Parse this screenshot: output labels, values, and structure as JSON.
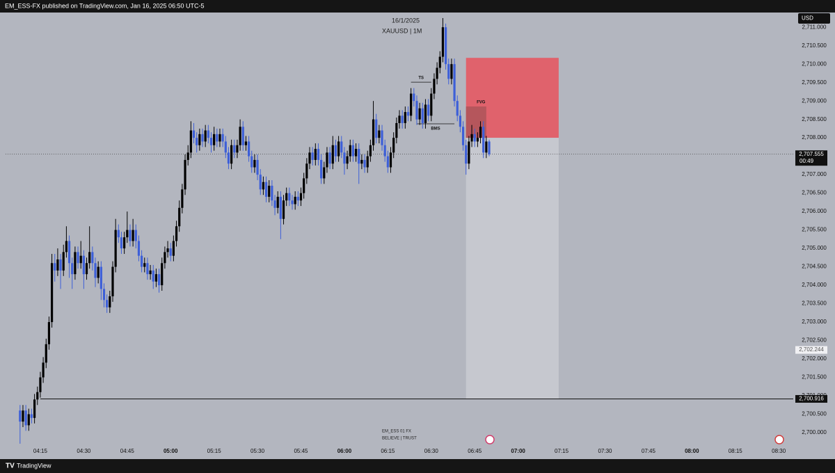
{
  "header": "EM_ESS-FX published on TradingView.com, Jan 16, 2025 06:50 UTC-5",
  "footer": "TradingView",
  "chart_data": {
    "type": "candlestick",
    "title": "16/1/2025",
    "subtitle": "XAUUSD | 1M",
    "currency": "USD",
    "countdown": "00:49",
    "watermark": [
      "EM_ESS 01 FX",
      "BELIEVE | TRUST"
    ],
    "up_color": "#000000",
    "down_color": "#3d5fd8",
    "background": "#b3b6bf",
    "x": [
      "04:08",
      "04:09",
      "04:10",
      "04:11",
      "04:12",
      "04:13",
      "04:14",
      "04:15",
      "04:16",
      "04:17",
      "04:18",
      "04:19",
      "04:20",
      "04:21",
      "04:22",
      "04:23",
      "04:24",
      "04:25",
      "04:26",
      "04:27",
      "04:28",
      "04:29",
      "04:30",
      "04:31",
      "04:32",
      "04:33",
      "04:34",
      "04:35",
      "04:36",
      "04:37",
      "04:38",
      "04:39",
      "04:40",
      "04:41",
      "04:42",
      "04:43",
      "04:44",
      "04:45",
      "04:46",
      "04:47",
      "04:48",
      "04:49",
      "04:50",
      "04:51",
      "04:52",
      "04:53",
      "04:54",
      "04:55",
      "04:56",
      "04:57",
      "04:58",
      "04:59",
      "05:00",
      "05:01",
      "05:02",
      "05:03",
      "05:04",
      "05:05",
      "05:06",
      "05:07",
      "05:08",
      "05:09",
      "05:10",
      "05:11",
      "05:12",
      "05:13",
      "05:14",
      "05:15",
      "05:16",
      "05:17",
      "05:18",
      "05:19",
      "05:20",
      "05:21",
      "05:22",
      "05:23",
      "05:24",
      "05:25",
      "05:26",
      "05:27",
      "05:28",
      "05:29",
      "05:30",
      "05:31",
      "05:32",
      "05:33",
      "05:34",
      "05:35",
      "05:36",
      "05:37",
      "05:38",
      "05:39",
      "05:40",
      "05:41",
      "05:42",
      "05:43",
      "05:44",
      "05:45",
      "05:46",
      "05:47",
      "05:48",
      "05:49",
      "05:50",
      "05:51",
      "05:52",
      "05:53",
      "05:54",
      "05:55",
      "05:56",
      "05:57",
      "05:58",
      "05:59",
      "06:00",
      "06:01",
      "06:02",
      "06:03",
      "06:04",
      "06:05",
      "06:06",
      "06:07",
      "06:08",
      "06:09",
      "06:10",
      "06:11",
      "06:12",
      "06:13",
      "06:14",
      "06:15",
      "06:16",
      "06:17",
      "06:18",
      "06:19",
      "06:20",
      "06:21",
      "06:22",
      "06:23",
      "06:24",
      "06:25",
      "06:26",
      "06:27",
      "06:28",
      "06:29",
      "06:30",
      "06:31",
      "06:32",
      "06:33",
      "06:34",
      "06:35",
      "06:36",
      "06:37",
      "06:38",
      "06:39",
      "06:40",
      "06:41",
      "06:42",
      "06:43",
      "06:44",
      "06:45",
      "06:46",
      "06:47",
      "06:48",
      "06:49",
      "06:50"
    ],
    "open": [
      2700.6,
      2700.3,
      2700.6,
      2700.2,
      2700.5,
      2700.4,
      2700.9,
      2701.1,
      2701.5,
      2701.9,
      2702.4,
      2703.0,
      2704.6,
      2704.4,
      2704.7,
      2704.4,
      2704.9,
      2705.2,
      2704.6,
      2704.3,
      2704.9,
      2704.6,
      2704.8,
      2704.3,
      2704.6,
      2704.9,
      2704.6,
      2704.2,
      2704.5,
      2703.9,
      2703.6,
      2703.4,
      2703.7,
      2704.5,
      2705.5,
      2705.3,
      2705.0,
      2705.3,
      2705.5,
      2705.2,
      2705.5,
      2705.2,
      2704.8,
      2704.5,
      2704.6,
      2704.3,
      2704.4,
      2704.1,
      2704.3,
      2704.0,
      2704.6,
      2704.9,
      2705.0,
      2704.8,
      2705.2,
      2705.6,
      2706.1,
      2706.6,
      2707.4,
      2707.6,
      2708.2,
      2708.0,
      2707.8,
      2708.1,
      2707.9,
      2708.2,
      2708.0,
      2707.8,
      2708.1,
      2707.9,
      2708.1,
      2707.9,
      2707.6,
      2707.3,
      2707.8,
      2707.6,
      2707.8,
      2708.3,
      2707.8,
      2707.9,
      2707.5,
      2707.2,
      2707.4,
      2707.0,
      2706.6,
      2706.8,
      2706.4,
      2706.7,
      2706.3,
      2706.1,
      2706.4,
      2705.8,
      2706.3,
      2706.5,
      2706.3,
      2706.2,
      2706.4,
      2706.3,
      2706.5,
      2706.9,
      2707.3,
      2707.6,
      2707.4,
      2707.7,
      2707.4,
      2706.9,
      2707.2,
      2707.6,
      2707.3,
      2707.8,
      2707.5,
      2707.9,
      2707.6,
      2707.3,
      2707.5,
      2707.8,
      2707.5,
      2707.7,
      2707.3,
      2707.4,
      2707.2,
      2707.5,
      2707.8,
      2708.5,
      2708.0,
      2708.2,
      2707.8,
      2707.5,
      2707.2,
      2707.6,
      2708.0,
      2708.4,
      2708.6,
      2708.4,
      2708.7,
      2708.6,
      2709.2,
      2709.0,
      2708.5,
      2708.8,
      2708.4,
      2708.9,
      2708.6,
      2709.2,
      2709.6,
      2709.9,
      2710.2,
      2711.0,
      2710.0,
      2709.6,
      2710.0,
      2709.0,
      2708.6,
      2708.3,
      2707.8,
      2707.3,
      2707.9,
      2708.1,
      2707.9,
      2708.0,
      2708.3,
      2707.6,
      2707.9
    ],
    "high": [
      2700.75,
      2700.75,
      2700.75,
      2700.65,
      2700.65,
      2701.05,
      2701.25,
      2701.65,
      2702.05,
      2702.55,
      2703.15,
      2704.85,
      2704.85,
      2705.0,
      2704.85,
      2705.1,
      2705.6,
      2705.35,
      2704.75,
      2705.05,
      2705.05,
      2705.2,
      2704.95,
      2704.75,
      2705.6,
      2705.05,
      2704.75,
      2704.65,
      2704.65,
      2704.05,
      2703.75,
      2703.85,
      2704.65,
      2705.8,
      2705.65,
      2705.45,
      2705.45,
      2706.0,
      2705.65,
      2705.8,
      2705.65,
      2705.35,
      2704.95,
      2704.75,
      2704.75,
      2704.55,
      2704.55,
      2704.45,
      2704.45,
      2704.75,
      2705.05,
      2705.2,
      2705.15,
      2705.35,
      2705.75,
      2706.3,
      2706.75,
      2707.55,
      2707.8,
      2708.45,
      2708.4,
      2708.15,
      2708.25,
      2708.25,
      2708.35,
      2708.35,
      2708.15,
      2708.3,
      2708.25,
      2708.25,
      2708.25,
      2708.05,
      2707.75,
      2707.95,
      2707.95,
      2707.95,
      2708.5,
      2708.45,
      2708.05,
      2708.05,
      2707.65,
      2707.55,
      2707.55,
      2707.15,
      2706.95,
      2706.95,
      2706.85,
      2706.85,
      2706.45,
      2706.55,
      2706.55,
      2706.45,
      2706.65,
      2706.65,
      2706.45,
      2706.55,
      2706.55,
      2706.65,
      2707.05,
      2707.45,
      2707.75,
      2707.75,
      2707.85,
      2707.85,
      2707.55,
      2707.35,
      2707.75,
      2707.75,
      2708.05,
      2707.95,
      2708.05,
      2708.05,
      2707.75,
      2707.65,
      2707.95,
      2707.95,
      2707.85,
      2707.85,
      2707.55,
      2707.55,
      2707.65,
      2707.95,
      2709.0,
      2708.65,
      2708.35,
      2708.35,
      2707.95,
      2707.65,
      2707.75,
      2708.15,
      2708.55,
      2708.75,
      2708.75,
      2708.85,
      2708.85,
      2709.35,
      2709.35,
      2709.15,
      2708.95,
      2708.95,
      2709.05,
      2709.05,
      2709.35,
      2709.75,
      2710.05,
      2710.35,
      2711.25,
      2711.1,
      2710.15,
      2710.15,
      2710.15,
      2709.15,
      2708.75,
      2708.45,
      2707.95,
      2708.05,
      2708.35,
      2708.25,
      2708.15,
      2708.45,
      2708.45,
      2708.05,
      2707.95
    ],
    "low": [
      2699.7,
      2700.15,
      2700.05,
      2700.05,
      2700.25,
      2700.25,
      2700.75,
      2700.95,
      2701.35,
      2701.75,
      2702.25,
      2702.85,
      2704.1,
      2704.25,
      2703.9,
      2704.25,
      2704.75,
      2704.2,
      2703.9,
      2704.15,
      2704.45,
      2704.45,
      2703.9,
      2704.15,
      2704.45,
      2704.4,
      2703.95,
      2704.05,
      2703.6,
      2703.4,
      2703.25,
      2703.25,
      2703.55,
      2704.35,
      2705.15,
      2704.85,
      2704.85,
      2705.15,
      2705.05,
      2705.05,
      2705.0,
      2704.65,
      2704.35,
      2704.35,
      2704.15,
      2704.15,
      2703.9,
      2703.95,
      2703.8,
      2703.85,
      2704.45,
      2704.75,
      2704.65,
      2704.65,
      2705.05,
      2705.45,
      2705.95,
      2706.45,
      2707.25,
      2707.45,
      2707.85,
      2707.6,
      2707.65,
      2707.75,
      2707.75,
      2707.85,
      2707.6,
      2707.65,
      2707.75,
      2707.75,
      2707.75,
      2707.45,
      2707.15,
      2707.15,
      2707.45,
      2707.45,
      2707.65,
      2707.65,
      2707.65,
      2707.35,
      2707.05,
      2707.05,
      2706.85,
      2706.45,
      2706.45,
      2706.25,
      2706.25,
      2706.15,
      2705.9,
      2705.95,
      2705.25,
      2705.65,
      2706.15,
      2706.15,
      2706.05,
      2706.05,
      2706.15,
      2706.15,
      2706.35,
      2706.75,
      2707.15,
      2707.25,
      2707.25,
      2707.25,
      2706.75,
      2706.75,
      2707.05,
      2707.15,
      2707.15,
      2707.35,
      2707.35,
      2707.45,
      2707.0,
      2707.15,
      2707.35,
      2707.35,
      2707.35,
      2706.75,
      2707.15,
      2707.05,
      2707.05,
      2707.35,
      2707.65,
      2707.85,
      2707.85,
      2707.65,
      2707.35,
      2707.05,
      2707.05,
      2707.45,
      2707.85,
      2708.25,
      2708.25,
      2708.25,
      2708.45,
      2708.45,
      2708.85,
      2708.35,
      2708.35,
      2708.25,
      2708.25,
      2708.45,
      2708.45,
      2709.05,
      2709.45,
      2709.75,
      2710.05,
      2709.85,
      2709.45,
      2709.45,
      2708.85,
      2708.45,
      2708.15,
      2707.65,
      2707.0,
      2707.15,
      2707.75,
      2707.75,
      2707.75,
      2707.85,
      2707.45,
      2707.45,
      2707.5
    ],
    "close": [
      2700.3,
      2700.6,
      2700.2,
      2700.5,
      2700.4,
      2700.9,
      2701.1,
      2701.5,
      2701.9,
      2702.4,
      2703.0,
      2704.6,
      2704.4,
      2704.7,
      2704.4,
      2704.9,
      2705.2,
      2704.6,
      2704.3,
      2704.9,
      2704.6,
      2704.8,
      2704.3,
      2704.6,
      2704.9,
      2704.6,
      2704.2,
      2704.5,
      2703.9,
      2703.6,
      2703.4,
      2703.7,
      2704.5,
      2705.5,
      2705.3,
      2705.0,
      2705.3,
      2705.5,
      2705.2,
      2705.5,
      2705.2,
      2704.8,
      2704.5,
      2704.6,
      2704.3,
      2704.4,
      2704.1,
      2704.3,
      2704.0,
      2704.6,
      2704.9,
      2705.0,
      2704.8,
      2705.2,
      2705.6,
      2706.1,
      2706.6,
      2707.4,
      2707.6,
      2708.2,
      2708.0,
      2707.8,
      2708.1,
      2707.9,
      2708.2,
      2708.0,
      2707.8,
      2708.1,
      2707.9,
      2708.1,
      2707.9,
      2707.6,
      2707.3,
      2707.8,
      2707.6,
      2707.8,
      2708.3,
      2707.8,
      2707.9,
      2707.5,
      2707.2,
      2707.4,
      2707.0,
      2706.6,
      2706.8,
      2706.4,
      2706.7,
      2706.3,
      2706.1,
      2706.4,
      2705.8,
      2706.3,
      2706.5,
      2706.3,
      2706.2,
      2706.4,
      2706.3,
      2706.5,
      2706.9,
      2707.3,
      2707.6,
      2707.4,
      2707.7,
      2707.4,
      2706.9,
      2707.2,
      2707.6,
      2707.3,
      2707.8,
      2707.5,
      2707.9,
      2707.6,
      2707.3,
      2707.5,
      2707.8,
      2707.5,
      2707.7,
      2707.3,
      2707.4,
      2707.2,
      2707.5,
      2707.8,
      2708.5,
      2708.0,
      2708.2,
      2707.8,
      2707.5,
      2707.2,
      2707.6,
      2708.0,
      2708.4,
      2708.6,
      2708.4,
      2708.7,
      2708.6,
      2709.2,
      2709.0,
      2708.5,
      2708.8,
      2708.4,
      2708.9,
      2708.6,
      2709.2,
      2709.6,
      2709.9,
      2710.2,
      2711.0,
      2710.0,
      2709.6,
      2710.0,
      2709.0,
      2708.6,
      2708.3,
      2707.8,
      2707.3,
      2707.9,
      2708.1,
      2707.9,
      2708.0,
      2708.3,
      2707.6,
      2707.9,
      2707.555
    ],
    "xlim": [
      "04:03",
      "08:35"
    ],
    "xticks": [
      "04:15",
      "04:30",
      "04:45",
      "05:00",
      "05:15",
      "05:30",
      "05:45",
      "06:00",
      "06:15",
      "06:30",
      "06:45",
      "07:00",
      "07:15",
      "07:30",
      "07:45",
      "08:00",
      "08:15",
      "08:30"
    ],
    "ylim": [
      2699.66,
      2711.4
    ],
    "yticks": [
      {
        "value": 2700,
        "label": "2,700.000"
      },
      {
        "value": 2700.5,
        "label": "2,700.500"
      },
      {
        "value": 2701,
        "label": "2,701.000"
      },
      {
        "value": 2701.5,
        "label": "2,701.500"
      },
      {
        "value": 2702,
        "label": "2,702.000"
      },
      {
        "value": 2702.5,
        "label": "2,702.500"
      },
      {
        "value": 2703,
        "label": "2,703.000"
      },
      {
        "value": 2703.5,
        "label": "2,703.500"
      },
      {
        "value": 2704,
        "label": "2,704.000"
      },
      {
        "value": 2704.5,
        "label": "2,704.500"
      },
      {
        "value": 2705,
        "label": "2,705.000"
      },
      {
        "value": 2705.5,
        "label": "2,705.500"
      },
      {
        "value": 2706,
        "label": "2,706.000"
      },
      {
        "value": 2706.5,
        "label": "2,706.500"
      },
      {
        "value": 2707,
        "label": "2,707.000"
      },
      {
        "value": 2707.5,
        "label": "2,707.500"
      },
      {
        "value": 2708,
        "label": "2,708.000"
      },
      {
        "value": 2708.5,
        "label": "2,708.500"
      },
      {
        "value": 2709,
        "label": "2,709.000"
      },
      {
        "value": 2709.5,
        "label": "2,709.500"
      },
      {
        "value": 2710,
        "label": "2,710.000"
      },
      {
        "value": 2710.5,
        "label": "2,710.500"
      },
      {
        "value": 2711,
        "label": "2,711.000"
      }
    ],
    "zones": [
      {
        "top": 2710.17,
        "bottom": 2708.0,
        "start": "06:42",
        "end": "07:14",
        "color": "#e0626c"
      },
      {
        "top": 2708.0,
        "bottom": 2700.916,
        "start": "06:42",
        "end": "07:14",
        "color": "#c6c8cf"
      },
      {
        "label": "FVG",
        "top": 2708.85,
        "bottom": 2708.0,
        "start": "06:42",
        "end": "06:49",
        "color": "#b5565c"
      }
    ],
    "annotations": [
      {
        "text": "TS",
        "value": 2709.51,
        "start": "06:23",
        "end": "06:30"
      },
      {
        "text": "BMS",
        "value": 2708.38,
        "start": "06:25",
        "end": "06:38"
      }
    ],
    "price_lines": [
      {
        "value": 2707.555,
        "label": "2,707.555",
        "dash": true,
        "dark": true
      },
      {
        "value": 2702.244,
        "label": "2,702.244",
        "dark": false
      },
      {
        "value": 2700.916,
        "label": "2,700.916",
        "start": "04:15",
        "dark": true
      }
    ]
  }
}
